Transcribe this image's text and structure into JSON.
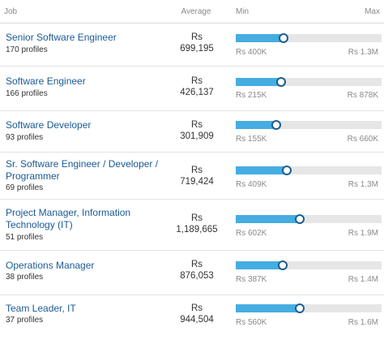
{
  "header": {
    "job": "Job",
    "average": "Average",
    "min": "Min",
    "max": "Max"
  },
  "rows": [
    {
      "title": "Senior Software Engineer",
      "profiles": "170 profiles",
      "currency": "Rs",
      "average": "699,195",
      "min": "Rs 400K",
      "max": "Rs 1.3M",
      "level": 0.33
    },
    {
      "title": "Software Engineer",
      "profiles": "166 profiles",
      "currency": "Rs",
      "average": "426,137",
      "min": "Rs 215K",
      "max": "Rs 878K",
      "level": 0.31
    },
    {
      "title": "Software Developer",
      "profiles": "93 profiles",
      "currency": "Rs",
      "average": "301,909",
      "min": "Rs 155K",
      "max": "Rs 660K",
      "level": 0.28
    },
    {
      "title": "Sr. Software Engineer / Developer / Programmer",
      "profiles": "69 profiles",
      "currency": "Rs",
      "average": "719,424",
      "min": "Rs 409K",
      "max": "Rs 1.3M",
      "level": 0.35
    },
    {
      "title": "Project Manager, Information Technology (IT)",
      "profiles": "51 profiles",
      "currency": "Rs",
      "average": "1,189,665",
      "min": "Rs 602K",
      "max": "Rs 1.9M",
      "level": 0.44
    },
    {
      "title": "Operations Manager",
      "profiles": "38 profiles",
      "currency": "Rs",
      "average": "876,053",
      "min": "Rs 387K",
      "max": "Rs 1.4M",
      "level": 0.32
    },
    {
      "title": "Team Leader, IT",
      "profiles": "37 profiles",
      "currency": "Rs",
      "average": "944,504",
      "min": "Rs 560K",
      "max": "Rs 1.6M",
      "level": 0.44
    }
  ],
  "colors": {
    "link": "#1a5a94",
    "fill": "#45ade1",
    "track": "#e6e6e6",
    "knob_border": "#1b5e8e"
  }
}
